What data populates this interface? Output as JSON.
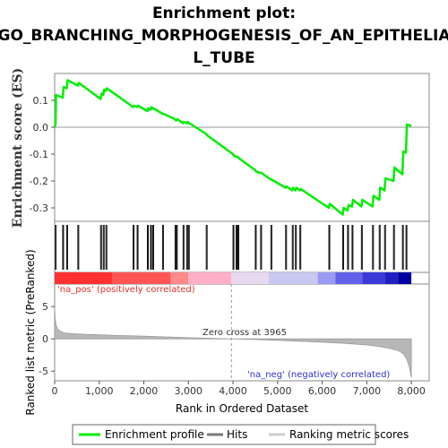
{
  "chart_data": {
    "type": "line",
    "title_lines": [
      "Enrichment plot:",
      "GO_BRANCHING_MORPHOGENESIS_OF_AN_EPITHELIA",
      "L_TUBE"
    ],
    "ylabel": "Enrichment score (ES)",
    "ylabel2": "Ranked list metric (PreRanked)",
    "xlabel": "Rank in Ordered Dataset",
    "xlim": [
      0,
      8400
    ],
    "ylim_es": [
      -0.35,
      0.2
    ],
    "ylim_metric": [
      -6.5,
      8.5
    ],
    "x_ticks": [
      0,
      1000,
      2000,
      3000,
      4000,
      5000,
      6000,
      7000,
      8000
    ],
    "x_tick_labels": [
      "0",
      "1,000",
      "2,000",
      "3,000",
      "4,000",
      "5,000",
      "6,000",
      "7,000",
      "8,000"
    ],
    "es_ticks": [
      0.1,
      0.0,
      -0.1,
      -0.2,
      -0.3
    ],
    "es_tick_labels": [
      "0.1",
      "0.0",
      "-0.1",
      "-0.2",
      "-0.3"
    ],
    "metric_ticks": [
      5,
      0,
      -5
    ],
    "metric_tick_labels": [
      "5",
      "0",
      "-5"
    ],
    "annotations": {
      "pos": "'na_pos' (positively correlated)",
      "neg": "'na_neg' (negatively correlated)",
      "zero": "Zero cross at 3965",
      "zero_cross": 3965
    },
    "series": [
      {
        "name": "Enrichment profile",
        "color": "#00ee00",
        "x": [
          0,
          20,
          30,
          180,
          200,
          270,
          290,
          520,
          540,
          1030,
          1050,
          1090,
          1110,
          1150,
          1170,
          1760,
          1780,
          1850,
          1870,
          2080,
          2100,
          2150,
          2170,
          2200,
          2220,
          2420,
          2440,
          2700,
          2720,
          2730,
          2750,
          2880,
          2900,
          2960,
          2980,
          3000,
          3020,
          3400,
          3420,
          4000,
          4020,
          4070,
          4090,
          4110,
          4130,
          4500,
          4520,
          4620,
          4640,
          4850,
          4870,
          5180,
          5200,
          5330,
          5350,
          5400,
          5420,
          5500,
          5520,
          6150,
          6170,
          6460,
          6480,
          6570,
          6590,
          6670,
          6690,
          6880,
          6900,
          7130,
          7150,
          7280,
          7300,
          7400,
          7420,
          7600,
          7620,
          7800,
          7820,
          7880,
          7900,
          8000
        ],
        "y": [
          0.0,
          0.01,
          0.12,
          0.11,
          0.15,
          0.145,
          0.175,
          0.155,
          0.165,
          0.105,
          0.125,
          0.12,
          0.14,
          0.135,
          0.145,
          0.075,
          0.08,
          0.075,
          0.08,
          0.06,
          0.07,
          0.065,
          0.075,
          0.07,
          0.07,
          0.05,
          0.05,
          0.03,
          0.025,
          0.025,
          0.03,
          0.015,
          0.02,
          0.015,
          0.02,
          0.015,
          0.015,
          -0.025,
          -0.03,
          -0.1,
          -0.105,
          -0.11,
          -0.11,
          -0.11,
          -0.115,
          -0.16,
          -0.165,
          -0.17,
          -0.17,
          -0.195,
          -0.195,
          -0.225,
          -0.22,
          -0.235,
          -0.225,
          -0.235,
          -0.225,
          -0.235,
          -0.23,
          -0.3,
          -0.285,
          -0.325,
          -0.3,
          -0.31,
          -0.29,
          -0.295,
          -0.27,
          -0.295,
          -0.27,
          -0.295,
          -0.255,
          -0.27,
          -0.225,
          -0.235,
          -0.19,
          -0.2,
          -0.15,
          -0.175,
          -0.09,
          -0.095,
          0.01,
          0.005
        ]
      }
    ],
    "hits": [
      20,
      30,
      180,
      200,
      270,
      290,
      520,
      540,
      1030,
      1050,
      1090,
      1110,
      1150,
      1170,
      1760,
      1780,
      1850,
      1870,
      2080,
      2100,
      2150,
      2170,
      2200,
      2220,
      2420,
      2440,
      2700,
      2720,
      2730,
      2750,
      2880,
      2900,
      2960,
      2980,
      3000,
      3020,
      3400,
      3420,
      4000,
      4020,
      4070,
      4090,
      4110,
      4130,
      4500,
      4520,
      4620,
      4640,
      4850,
      4870,
      5180,
      5200,
      5330,
      5350,
      5400,
      5420,
      5500,
      5520,
      6150,
      6170,
      6460,
      6480,
      6570,
      6590,
      6670,
      6690,
      6880,
      6900,
      7130,
      7150,
      7280,
      7300,
      7400,
      7420,
      7600,
      7620,
      7800,
      7820,
      7880,
      7900
    ],
    "metric_curve": {
      "x": [
        0,
        10,
        30,
        60,
        100,
        200,
        400,
        700,
        1000,
        1500,
        2000,
        2500,
        3000,
        3500,
        3965,
        4500,
        5000,
        5500,
        6000,
        6500,
        7000,
        7300,
        7500,
        7700,
        7800,
        7850,
        7900,
        7950,
        8000
      ],
      "y": [
        5.0,
        3.2,
        2.2,
        1.6,
        1.3,
        0.95,
        0.8,
        0.7,
        0.62,
        0.52,
        0.42,
        0.3,
        0.18,
        0.08,
        0.0,
        -0.1,
        -0.22,
        -0.36,
        -0.5,
        -0.7,
        -0.95,
        -1.2,
        -1.45,
        -1.8,
        -2.2,
        -2.6,
        -3.2,
        -4.2,
        -6.0
      ]
    },
    "colorbar": {
      "colors": [
        "#ff3030",
        "#ff5555",
        "#ff8a8a",
        "#ffb0c8",
        "#e8d8f0",
        "#c8c8f0",
        "#9a9af0",
        "#6060e8",
        "#3a3ad8",
        "#2020c0",
        "#0000a0"
      ],
      "stops": [
        0,
        1300,
        2600,
        3000,
        3965,
        4800,
        5900,
        6300,
        6900,
        7400,
        7700,
        8000
      ]
    },
    "legend": [
      {
        "label": "Enrichment profile",
        "icon": "green-line"
      },
      {
        "label": "Hits",
        "icon": "black-tick"
      },
      {
        "label": "Ranking metric scores",
        "icon": "grey-line"
      }
    ]
  }
}
